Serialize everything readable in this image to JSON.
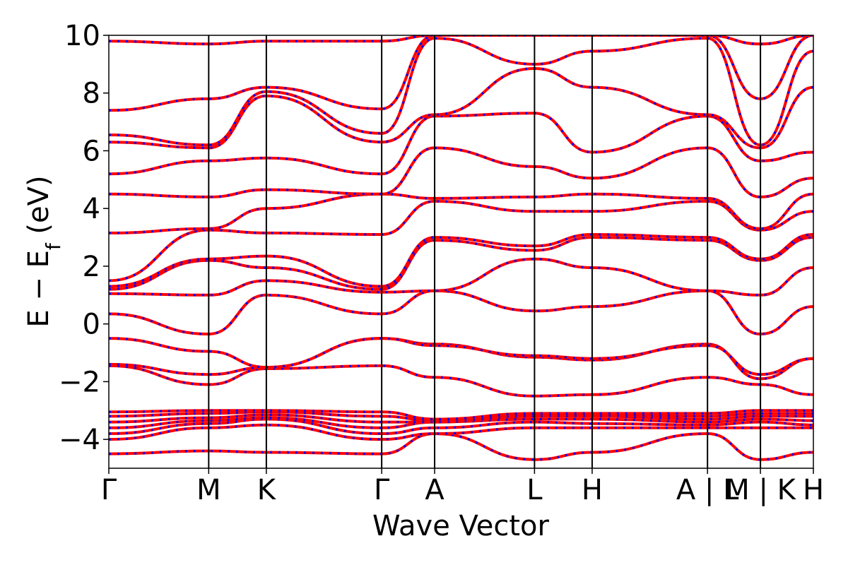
{
  "chart_data": {
    "type": "line",
    "title": "",
    "xlabel": "Wave Vector",
    "ylabel": "E − E",
    "ylabel_sub": "f",
    "ylabel_unit": " (eV)",
    "ylim": [
      -5,
      10
    ],
    "yticks": [
      10,
      8,
      6,
      4,
      2,
      0,
      -2,
      -4
    ],
    "ytick_labels": [
      "10",
      "8",
      "6",
      "4",
      "2",
      "0",
      "−2",
      "−4"
    ],
    "grid": false,
    "legend": "none",
    "dft_color": "#0000ff",
    "interp_color": "#ff0000",
    "kpath": [
      {
        "label": "Γ",
        "x": 0.0
      },
      {
        "label": "M",
        "x": 1.0
      },
      {
        "label": "K",
        "x": 1.577
      },
      {
        "label": "Γ",
        "x": 2.732
      },
      {
        "label": "A",
        "x": 3.262
      },
      {
        "label": "L",
        "x": 4.262
      },
      {
        "label": "H",
        "x": 4.839
      },
      {
        "label": "A | L",
        "x": 5.994
      },
      {
        "label": "M | K",
        "x": 6.524
      },
      {
        "label": "H",
        "x": 7.054
      }
    ],
    "series": [
      {
        "x": [
          0,
          1,
          1.577,
          2.732,
          3.262,
          4.262,
          4.839,
          5.994,
          6.524,
          7.054
        ],
        "values": [
          -4.5,
          -4.4,
          -4.45,
          -4.5,
          -3.8,
          -4.7,
          -4.45,
          -3.8,
          -4.7,
          -4.45
        ]
      },
      {
        "x": [
          0,
          1,
          1.577,
          2.732,
          3.262,
          4.262,
          4.839,
          5.994,
          6.524,
          7.054
        ],
        "values": [
          -4.0,
          -3.6,
          -3.5,
          -4.0,
          -3.8,
          -3.6,
          -3.6,
          -3.6,
          -3.6,
          -3.6
        ]
      },
      {
        "x": [
          0,
          1,
          1.577,
          2.732,
          3.262,
          4.262,
          4.839,
          5.994,
          6.524,
          7.054
        ],
        "values": [
          -3.8,
          -3.45,
          -3.3,
          -3.8,
          -3.6,
          -3.4,
          -3.45,
          -3.5,
          -3.4,
          -3.5
        ]
      },
      {
        "x": [
          0,
          1,
          1.577,
          2.732,
          3.262,
          4.262,
          4.839,
          5.994,
          6.524,
          7.054
        ],
        "values": [
          -3.6,
          -3.35,
          -3.25,
          -3.6,
          -3.4,
          -3.3,
          -3.3,
          -3.4,
          -3.3,
          -3.35
        ]
      },
      {
        "x": [
          0,
          1,
          1.577,
          2.732,
          3.262,
          4.262,
          4.839,
          5.994,
          6.524,
          7.054
        ],
        "values": [
          -3.4,
          -3.25,
          -3.15,
          -3.4,
          -3.4,
          -3.2,
          -3.2,
          -3.3,
          -3.2,
          -3.2
        ]
      },
      {
        "x": [
          0,
          1,
          1.577,
          2.732,
          3.262,
          4.262,
          4.839,
          5.994,
          6.524,
          7.054
        ],
        "values": [
          -3.2,
          -3.1,
          -3.05,
          -3.2,
          -3.35,
          -3.15,
          -3.15,
          -3.2,
          -3.1,
          -3.1
        ]
      },
      {
        "x": [
          0,
          1,
          1.577,
          2.732,
          3.262,
          4.262,
          4.839,
          5.994,
          6.524,
          7.054
        ],
        "values": [
          -3.05,
          -3.0,
          -3.0,
          -3.05,
          -3.3,
          -3.1,
          -3.1,
          -3.1,
          -3.0,
          -3.0
        ]
      },
      {
        "x": [
          0,
          1,
          1.577,
          2.732,
          3.262,
          4.262,
          4.839,
          5.994,
          6.524,
          7.054
        ],
        "values": [
          -1.45,
          -2.1,
          -1.55,
          -1.45,
          -1.85,
          -2.5,
          -2.45,
          -1.85,
          -2.1,
          -2.45
        ]
      },
      {
        "x": [
          0,
          1,
          1.577,
          2.732,
          3.262,
          4.262,
          4.839,
          5.994,
          6.524,
          7.054
        ],
        "values": [
          -1.4,
          -1.75,
          -1.5,
          -0.5,
          -0.7,
          -1.15,
          -1.25,
          -0.7,
          -1.9,
          -1.2
        ]
      },
      {
        "x": [
          0,
          1,
          1.577,
          2.732,
          3.262,
          4.262,
          4.839,
          5.994,
          6.524,
          7.054
        ],
        "values": [
          -0.5,
          -0.95,
          -1.5,
          -0.5,
          -0.75,
          -1.1,
          -1.2,
          -0.75,
          -1.75,
          -1.2
        ]
      },
      {
        "x": [
          0,
          1,
          1.577,
          2.732,
          3.262,
          4.262,
          4.839,
          5.994,
          6.524,
          7.054
        ],
        "values": [
          0.35,
          -0.35,
          1.0,
          0.35,
          1.15,
          0.45,
          0.6,
          1.15,
          -0.35,
          0.6
        ]
      },
      {
        "x": [
          0,
          1,
          1.577,
          2.732,
          3.262,
          4.262,
          4.839,
          5.994,
          6.524,
          7.054
        ],
        "values": [
          1.05,
          1.0,
          1.5,
          1.1,
          1.15,
          2.25,
          1.95,
          1.15,
          1.0,
          1.95
        ]
      },
      {
        "x": [
          0,
          1,
          1.577,
          2.732,
          3.262,
          4.262,
          4.839,
          5.994,
          6.524,
          7.054
        ],
        "values": [
          1.2,
          2.2,
          1.95,
          1.2,
          2.9,
          2.55,
          3.0,
          2.9,
          2.2,
          3.0
        ]
      },
      {
        "x": [
          0,
          1,
          1.577,
          2.732,
          3.262,
          4.262,
          4.839,
          5.994,
          6.524,
          7.054
        ],
        "values": [
          1.3,
          2.25,
          2.35,
          1.3,
          3.0,
          2.7,
          3.1,
          3.0,
          2.25,
          3.1
        ]
      },
      {
        "x": [
          0,
          1,
          1.577,
          2.732,
          3.262,
          4.262,
          4.839,
          5.994,
          6.524,
          7.054
        ],
        "values": [
          1.5,
          3.25,
          3.15,
          3.1,
          4.25,
          3.9,
          3.9,
          4.25,
          3.25,
          3.9
        ]
      },
      {
        "x": [
          0,
          1,
          1.577,
          2.732,
          3.262,
          4.262,
          4.839,
          5.994,
          6.524,
          7.054
        ],
        "values": [
          3.15,
          3.3,
          4.0,
          4.5,
          4.35,
          4.4,
          4.5,
          4.35,
          3.3,
          4.5
        ]
      },
      {
        "x": [
          0,
          1,
          1.577,
          2.732,
          3.262,
          4.262,
          4.839,
          5.994,
          6.524,
          7.054
        ],
        "values": [
          4.5,
          4.4,
          4.65,
          4.5,
          6.1,
          5.45,
          5.05,
          6.1,
          4.4,
          5.05
        ]
      },
      {
        "x": [
          0,
          1,
          1.577,
          2.732,
          3.262,
          4.262,
          4.839,
          5.994,
          6.524,
          7.054
        ],
        "values": [
          5.2,
          5.65,
          5.75,
          5.2,
          7.2,
          7.3,
          5.95,
          7.2,
          5.65,
          5.95
        ]
      },
      {
        "x": [
          0,
          1,
          1.577,
          2.732,
          3.262,
          4.262,
          4.839,
          5.994,
          6.524,
          7.054
        ],
        "values": [
          6.3,
          6.1,
          7.9,
          6.3,
          7.25,
          8.85,
          8.2,
          7.25,
          6.1,
          8.2
        ]
      },
      {
        "x": [
          0,
          1,
          1.577,
          2.732,
          3.262,
          4.262,
          4.839,
          5.994,
          6.524,
          7.054
        ],
        "values": [
          6.55,
          6.2,
          8.05,
          6.6,
          9.9,
          9.0,
          9.45,
          9.9,
          6.2,
          9.45
        ]
      },
      {
        "x": [
          0,
          1,
          1.577,
          2.732,
          3.262,
          4.262,
          4.839,
          5.994,
          6.524,
          7.054
        ],
        "values": [
          7.4,
          7.8,
          8.2,
          7.45,
          10.0,
          10.0,
          10.0,
          10.0,
          7.8,
          10.0
        ]
      },
      {
        "x": [
          0,
          1,
          1.577,
          2.732,
          3.262,
          4.262,
          4.839,
          5.994,
          6.524,
          7.054
        ],
        "values": [
          9.8,
          9.7,
          9.8,
          9.8,
          10.0,
          10.0,
          10.0,
          10.0,
          9.7,
          10.0
        ]
      }
    ]
  }
}
